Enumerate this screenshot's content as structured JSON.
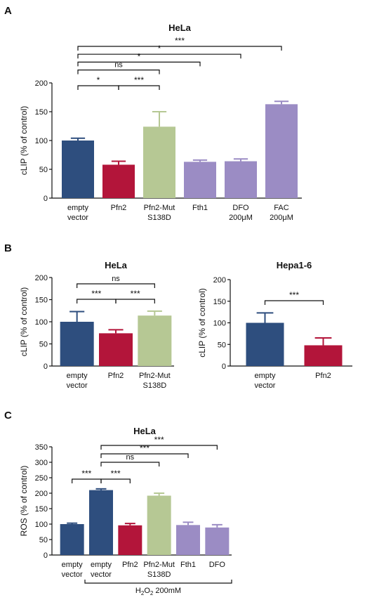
{
  "panels": [
    {
      "id": "A",
      "letter": "A",
      "chart_data": {
        "type": "bar",
        "title": "HeLa",
        "ylabel": "cLIP (% of control)",
        "ylim": [
          0,
          200
        ],
        "yticks": [
          0,
          50,
          100,
          150,
          200
        ],
        "categories": [
          [
            "empty",
            "vector"
          ],
          [
            "Pfn2"
          ],
          [
            "Pfn2-Mut",
            "S138D"
          ],
          [
            "Fth1"
          ],
          [
            "DFO",
            "200μM"
          ],
          [
            "FAC",
            "200μM"
          ]
        ],
        "values": [
          100,
          58,
          124,
          63,
          64,
          163
        ],
        "errors": [
          4,
          6,
          26,
          3,
          4,
          5
        ],
        "colors": [
          "#2e4e7e",
          "#b3153a",
          "#b6c894",
          "#9b8cc4",
          "#9b8cc4",
          "#9b8cc4"
        ],
        "significance": [
          {
            "from": 0,
            "to": 5,
            "label": "***"
          },
          {
            "from": 0,
            "to": 4,
            "label": "*"
          },
          {
            "from": 0,
            "to": 3,
            "label": "*"
          },
          {
            "from": 0,
            "to": 2,
            "label": "ns"
          },
          {
            "from": 0,
            "to": 1,
            "label": "*"
          },
          {
            "from": 1,
            "to": 2,
            "label": "***"
          }
        ]
      }
    },
    {
      "id": "B-left",
      "letter": "B",
      "chart_data": {
        "type": "bar",
        "title": "HeLa",
        "ylabel": "cLIP (% of control)",
        "ylim": [
          0,
          200
        ],
        "yticks": [
          0,
          50,
          100,
          150,
          200
        ],
        "categories": [
          [
            "empty",
            "vector"
          ],
          [
            "Pfn2"
          ],
          [
            "Pfn2-Mut",
            "S138D"
          ]
        ],
        "values": [
          100,
          74,
          114
        ],
        "errors": [
          23,
          8,
          10
        ],
        "colors": [
          "#2e4e7e",
          "#b3153a",
          "#b6c894"
        ],
        "significance": [
          {
            "from": 0,
            "to": 2,
            "label": "ns"
          },
          {
            "from": 0,
            "to": 1,
            "label": "***"
          },
          {
            "from": 1,
            "to": 2,
            "label": "***"
          }
        ]
      }
    },
    {
      "id": "B-right",
      "letter": "",
      "chart_data": {
        "type": "bar",
        "title": "Hepa1-6",
        "ylabel": "cLIP (% of control)",
        "ylim": [
          0,
          200
        ],
        "yticks": [
          0,
          50,
          100,
          150,
          200
        ],
        "categories": [
          [
            "empty",
            "vector"
          ],
          [
            "Pfn2"
          ]
        ],
        "values": [
          100,
          48
        ],
        "errors": [
          23,
          17
        ],
        "colors": [
          "#2e4e7e",
          "#b3153a"
        ],
        "significance": [
          {
            "from": 0,
            "to": 1,
            "label": "***"
          }
        ]
      }
    },
    {
      "id": "C",
      "letter": "C",
      "chart_data": {
        "type": "bar",
        "title": "HeLa",
        "ylabel": "ROS (% of control)",
        "ylim": [
          0,
          350
        ],
        "yticks": [
          0,
          50,
          100,
          150,
          200,
          250,
          300,
          350
        ],
        "categories": [
          [
            "empty",
            "vector"
          ],
          [
            "empty",
            "vector"
          ],
          [
            "Pfn2"
          ],
          [
            "Pfn2-Mut",
            "S138D"
          ],
          [
            "Fth1"
          ],
          [
            "DFO"
          ]
        ],
        "values": [
          100,
          210,
          96,
          192,
          97,
          89
        ],
        "errors": [
          3,
          4,
          6,
          8,
          9,
          9
        ],
        "colors": [
          "#2e4e7e",
          "#2e4e7e",
          "#b3153a",
          "#b6c894",
          "#9b8cc4",
          "#9b8cc4"
        ],
        "significance": [
          {
            "from": 1,
            "to": 5,
            "label": "***"
          },
          {
            "from": 1,
            "to": 4,
            "label": "***"
          },
          {
            "from": 1,
            "to": 3,
            "label": "ns"
          },
          {
            "from": 0,
            "to": 1,
            "label": "***"
          },
          {
            "from": 1,
            "to": 2,
            "label": "***"
          }
        ],
        "treatment_label": {
          "prefix": "H",
          "sub": "2",
          "mid": "O",
          "sub2": "2",
          "suffix": " 200mM"
        }
      }
    }
  ]
}
